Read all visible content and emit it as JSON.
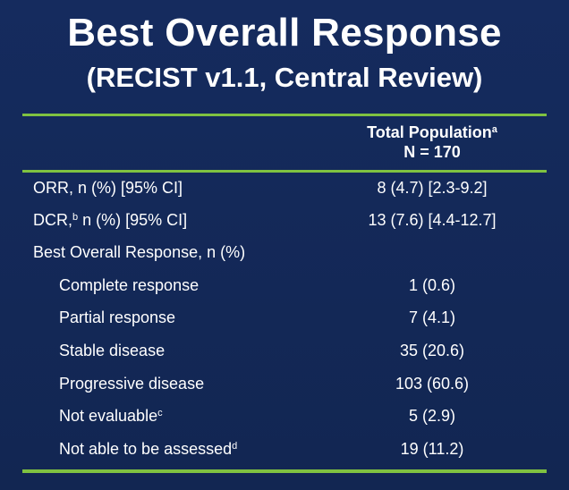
{
  "title": {
    "line1": "Best Overall Response",
    "line2": "(RECIST v1.1, Central Review)"
  },
  "table": {
    "column_header": {
      "line1": "Total Population",
      "line1_footnote": "a",
      "line2": "N = 170"
    },
    "rows": [
      {
        "label": "ORR, n (%) [95% CI]",
        "value": "8 (4.7) [2.3-9.2]"
      },
      {
        "label_prefix": "DCR,",
        "label_footnote": "b",
        "label_suffix": " n (%) [95% CI]",
        "value": "13 (7.6) [4.4-12.7]"
      },
      {
        "label": "Best Overall Response, n (%)",
        "value": ""
      },
      {
        "label": "Complete response",
        "value": "1 (0.6)"
      },
      {
        "label": "Partial response",
        "value": "7 (4.1)"
      },
      {
        "label": "Stable disease",
        "value": "35 (20.6)"
      },
      {
        "label": "Progressive disease",
        "value": "103 (60.6)"
      },
      {
        "label": "Not evaluable",
        "label_footnote": "c",
        "value": "5 (2.9)"
      },
      {
        "label": "Not able to be assessed",
        "label_footnote": "d",
        "value": "19 (11.2)"
      }
    ]
  },
  "colors": {
    "background": "#14285a",
    "rule": "#7fc241",
    "text": "#ffffff"
  }
}
